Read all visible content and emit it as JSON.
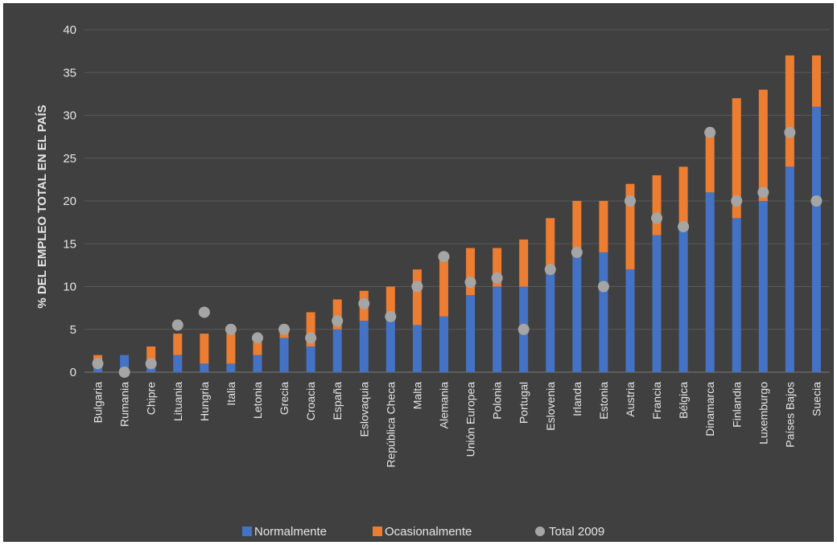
{
  "chart_data": {
    "type": "bar",
    "stacked": true,
    "ylabel": "% DEL EMPLEO TOTAL EN EL PAÍS",
    "xlabel": "",
    "ylim": [
      0,
      40
    ],
    "yticks": [
      0,
      5,
      10,
      15,
      20,
      25,
      30,
      35,
      40
    ],
    "grid": true,
    "legend": "bottom",
    "categories": [
      "Bulgaria",
      "Rumania",
      "Chipre",
      "Lituania",
      "Hungria",
      "Italia",
      "Letonia",
      "Grecia",
      "Croacia",
      "España",
      "Eslovaquia",
      "República Checa",
      "Malta",
      "Alemania",
      "Unión Europea",
      "Polonia",
      "Portugal",
      "Eslovenia",
      "Irlanda",
      "Estonia",
      "Austria",
      "Francia",
      "Bélgica",
      "Dinamarca",
      "Finlandia",
      "Luxemburgo",
      "Países Bajos",
      "Suecia"
    ],
    "series": [
      {
        "name": "Normalmente",
        "kind": "bar",
        "color": "#4472c4",
        "values": [
          0.5,
          2,
          0.5,
          2,
          1,
          1,
          2,
          4,
          3,
          5,
          6,
          6,
          5.5,
          6.5,
          9,
          10,
          10,
          11.5,
          13.5,
          14,
          12,
          16,
          16.5,
          21,
          18,
          20,
          24,
          31
        ]
      },
      {
        "name": "Ocasionalmente",
        "kind": "bar",
        "color": "#ed7d31",
        "values": [
          1.5,
          0,
          2.5,
          2.5,
          3.5,
          3.5,
          1.5,
          1,
          4,
          3.5,
          3.5,
          4,
          6.5,
          7,
          5.5,
          4.5,
          5.5,
          6.5,
          6.5,
          6,
          10,
          7,
          7.5,
          7,
          14,
          13,
          13,
          6
        ]
      },
      {
        "name": "Total 2009",
        "kind": "point",
        "color": "#a5a5a5",
        "values": [
          1,
          0,
          1,
          5.5,
          7,
          5,
          4,
          5,
          4,
          6,
          8,
          6.5,
          10,
          13.5,
          10.5,
          11,
          5,
          12,
          14,
          10,
          20,
          18,
          17,
          28,
          20,
          21,
          28,
          20
        ]
      }
    ]
  }
}
